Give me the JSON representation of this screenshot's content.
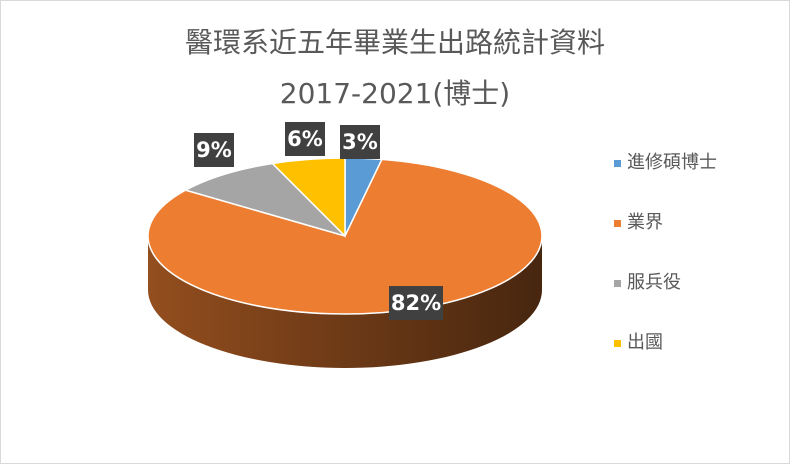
{
  "chart_data": {
    "type": "pie",
    "title_line1": "醫環系近五年畢業生出路統計資料",
    "title_line2": "2017-2021(博士)",
    "slices": [
      {
        "label": "進修碩博士",
        "value": 3,
        "display": "3%",
        "color": "#5B9BD5"
      },
      {
        "label": "業界",
        "value": 82,
        "display": "82%",
        "color": "#ED7D31"
      },
      {
        "label": "服兵役",
        "value": 9,
        "display": "9%",
        "color": "#A5A5A5"
      },
      {
        "label": "出國",
        "value": 6,
        "display": "6%",
        "color": "#FFC000"
      }
    ],
    "legend_position": "right",
    "data_label_background": "#404040"
  }
}
